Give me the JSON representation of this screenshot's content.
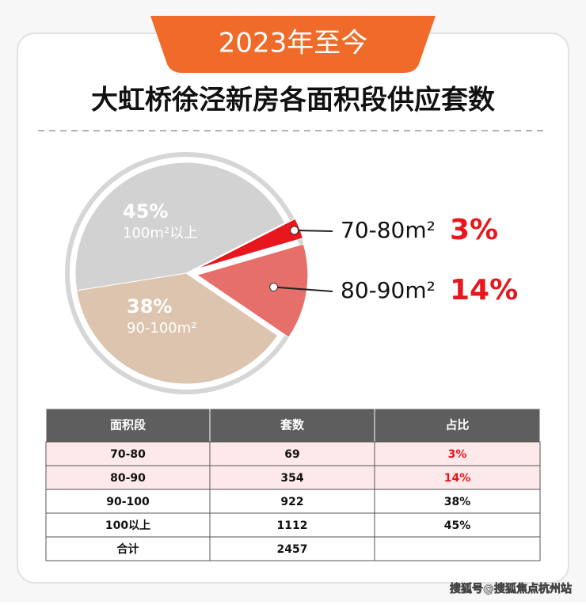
{
  "header": {
    "badge": "2023年至今",
    "title": "大虹桥徐泾新房各面积段供应套数"
  },
  "chart_data": {
    "type": "pie",
    "categories": [
      "70-80m²",
      "80-90m²",
      "90-100m²",
      "100m²以上"
    ],
    "values": [
      3,
      14,
      38,
      45
    ],
    "value_labels": [
      "3%",
      "14%",
      "38%",
      "45%"
    ],
    "colors": [
      "#e8161d",
      "#e66f6a",
      "#dcc4ae",
      "#d2d2d2"
    ]
  },
  "table": {
    "columns": [
      "面积段",
      "套数",
      "占比"
    ],
    "rows": [
      [
        "70-80",
        "69",
        "3%"
      ],
      [
        "80-90",
        "354",
        "14%"
      ],
      [
        "90-100",
        "922",
        "38%"
      ],
      [
        "100以上",
        "1112",
        "45%"
      ],
      [
        "合计",
        "2457",
        ""
      ]
    ]
  },
  "watermark": "搜狐号@搜狐焦点杭州站"
}
